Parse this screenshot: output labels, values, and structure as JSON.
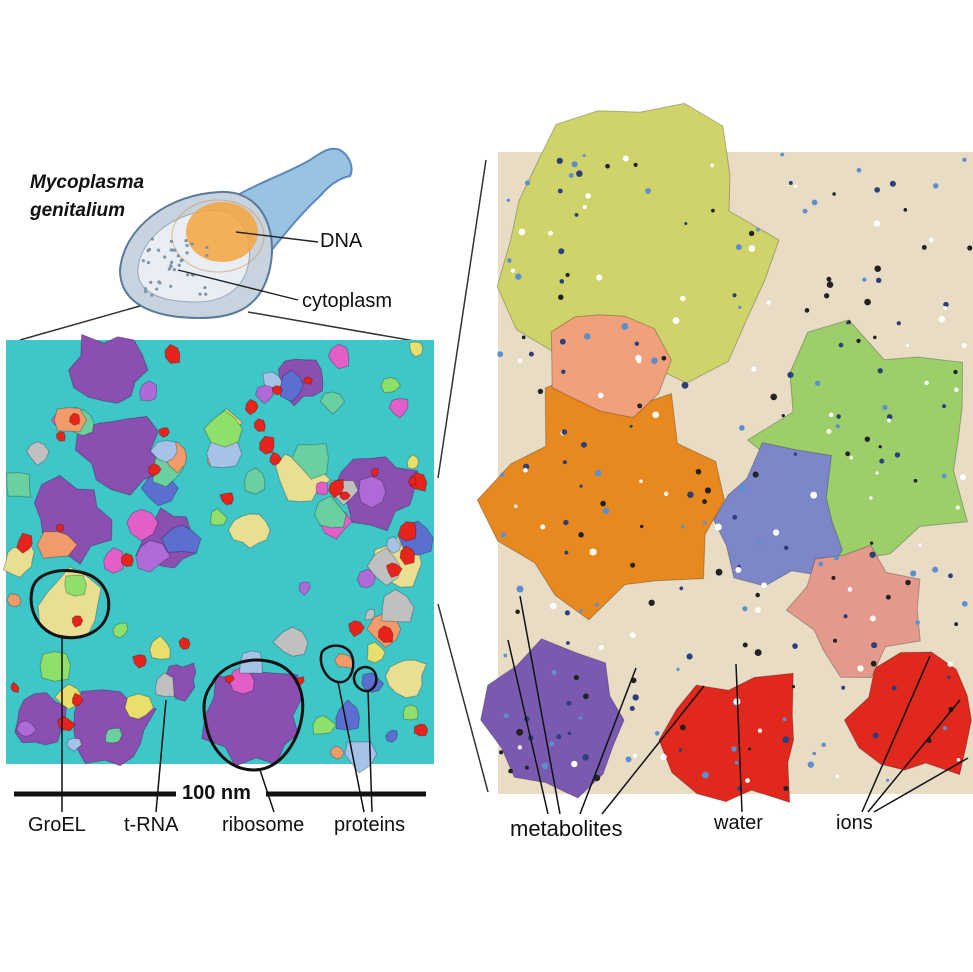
{
  "cell": {
    "title_line1": "Mycoplasma",
    "title_line2": "genitalium",
    "dna_label": "DNA",
    "cytoplasm_label": "cytoplasm"
  },
  "left_panel": {
    "scale_label": "100 nm",
    "labels": {
      "groel": "GroEL",
      "trna": "t-RNA",
      "ribosome": "ribosome",
      "proteins": "proteins"
    }
  },
  "right_panel": {
    "labels": {
      "metabolites": "metabolites",
      "water": "water",
      "ions": "ions"
    }
  },
  "colors": {
    "background_water": "#3fc6c8",
    "ribosome": "#8a4fb0",
    "groel": "#e8df92",
    "trna": "#e8231c",
    "outline": "#111111"
  }
}
